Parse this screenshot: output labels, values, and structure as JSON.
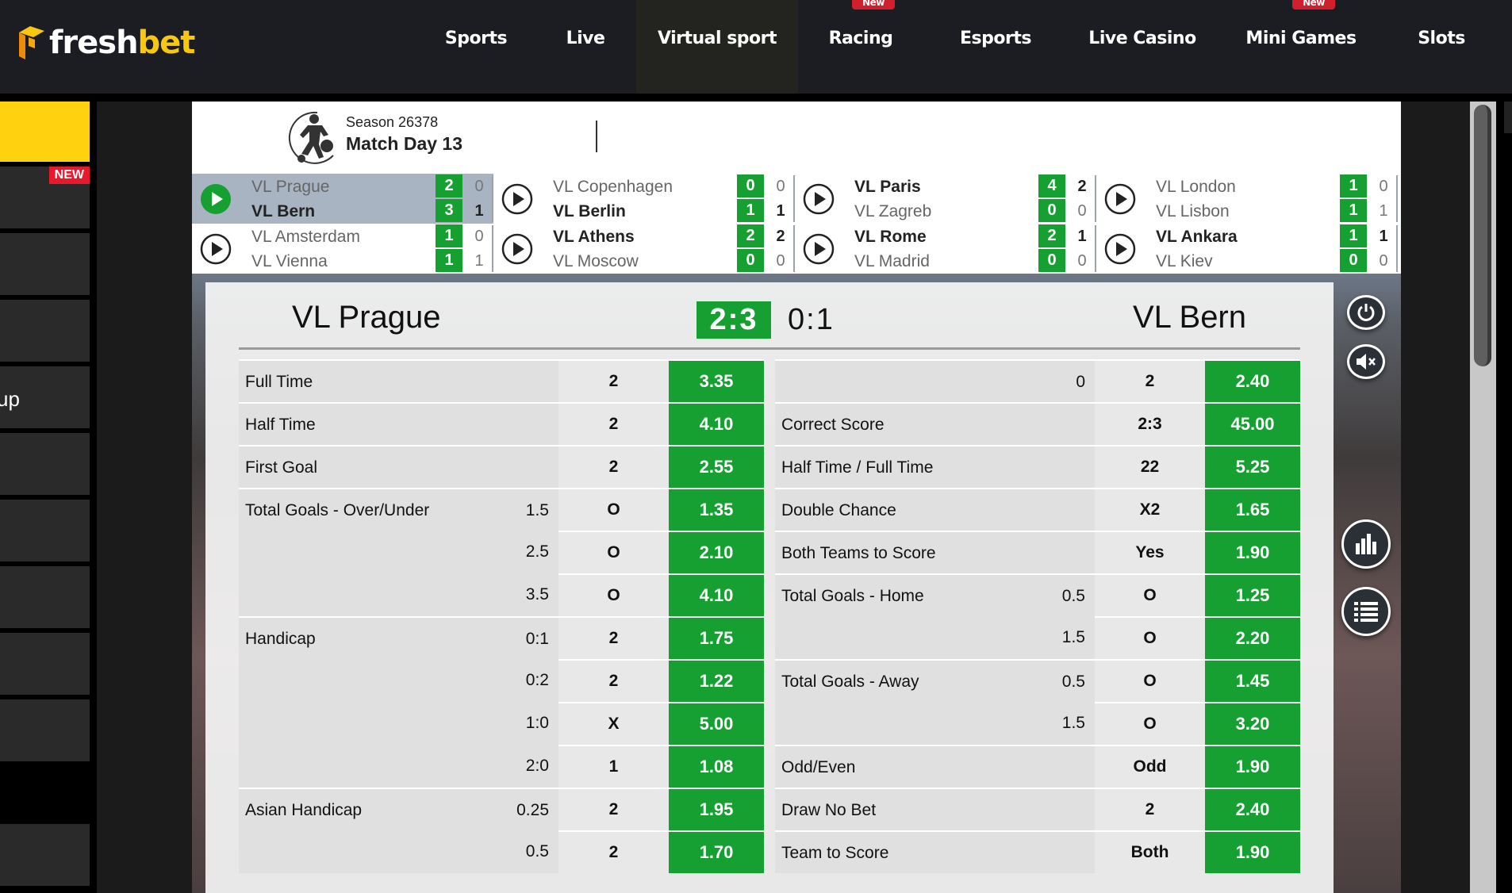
{
  "header": {
    "logo_a": "fresh",
    "logo_b": "bet",
    "nav": [
      {
        "label": "Sports"
      },
      {
        "label": "Live"
      },
      {
        "label": "Virtual sport",
        "active": true
      },
      {
        "label": "Racing",
        "badge": "New"
      },
      {
        "label": "Esports"
      },
      {
        "label": "Live Casino"
      },
      {
        "label": "Mini Games",
        "badge": "New"
      },
      {
        "label": "Slots"
      }
    ]
  },
  "sidebar": {
    "new_badge": "NEW",
    "partial_text": "up"
  },
  "season": {
    "season": "Season 26378",
    "match_day": "Match Day 13"
  },
  "matches": [
    {
      "home": "VL Prague",
      "away": "VL Bern",
      "home_ft": "2",
      "away_ft": "3",
      "home_ht": "0",
      "away_ht": "1",
      "home_bold": false,
      "away_bold": true,
      "active": true
    },
    {
      "home": "VL Copenhagen",
      "away": "VL Berlin",
      "home_ft": "0",
      "away_ft": "1",
      "home_ht": "0",
      "away_ht": "1",
      "home_bold": false,
      "away_bold": true
    },
    {
      "home": "VL Paris",
      "away": "VL Zagreb",
      "home_ft": "4",
      "away_ft": "0",
      "home_ht": "2",
      "away_ht": "0",
      "home_bold": true,
      "away_bold": false
    },
    {
      "home": "VL London",
      "away": "VL Lisbon",
      "home_ft": "1",
      "away_ft": "1",
      "home_ht": "0",
      "away_ht": "1",
      "home_bold": false,
      "away_bold": false
    },
    {
      "home": "VL Amsterdam",
      "away": "VL Vienna",
      "home_ft": "1",
      "away_ft": "1",
      "home_ht": "0",
      "away_ht": "1",
      "home_bold": false,
      "away_bold": false
    },
    {
      "home": "VL Athens",
      "away": "VL Moscow",
      "home_ft": "2",
      "away_ft": "0",
      "home_ht": "2",
      "away_ht": "0",
      "home_bold": true,
      "away_bold": false
    },
    {
      "home": "VL Rome",
      "away": "VL Madrid",
      "home_ft": "2",
      "away_ft": "0",
      "home_ht": "1",
      "away_ht": "0",
      "home_bold": true,
      "away_bold": false
    },
    {
      "home": "VL Ankara",
      "away": "VL Kiev",
      "home_ft": "1",
      "away_ft": "0",
      "home_ht": "1",
      "away_ht": "0",
      "home_bold": true,
      "away_bold": false
    }
  ],
  "detail": {
    "home": "VL Prague",
    "away": "VL Bern",
    "score": "2:3",
    "ht_score": "0:1",
    "left": [
      {
        "label": "Full Time",
        "line": "",
        "pick": "2",
        "odds": "3.35"
      },
      {
        "label": "Half Time",
        "line": "",
        "pick": "2",
        "odds": "4.10"
      },
      {
        "label": "First Goal",
        "line": "",
        "pick": "2",
        "odds": "2.55"
      },
      {
        "label": "Total Goals - Over/Under",
        "line": "1.5",
        "pick": "O",
        "odds": "1.35"
      },
      {
        "label": "",
        "line": "2.5",
        "pick": "O",
        "odds": "2.10",
        "cont": true
      },
      {
        "label": "",
        "line": "3.5",
        "pick": "O",
        "odds": "4.10",
        "cont": true
      },
      {
        "label": "Handicap",
        "line": "0:1",
        "pick": "2",
        "odds": "1.75"
      },
      {
        "label": "",
        "line": "0:2",
        "pick": "2",
        "odds": "1.22",
        "cont": true
      },
      {
        "label": "",
        "line": "1:0",
        "pick": "X",
        "odds": "5.00",
        "cont": true
      },
      {
        "label": "",
        "line": "2:0",
        "pick": "1",
        "odds": "1.08",
        "cont": true
      },
      {
        "label": "Asian Handicap",
        "line": "0.25",
        "pick": "2",
        "odds": "1.95"
      },
      {
        "label": "",
        "line": "0.5",
        "pick": "2",
        "odds": "1.70",
        "cont": true
      }
    ],
    "right": [
      {
        "label": "",
        "line": "0",
        "pick": "2",
        "odds": "2.40"
      },
      {
        "label": "Correct Score",
        "line": "",
        "pick": "2:3",
        "odds": "45.00"
      },
      {
        "label": "Half Time / Full Time",
        "line": "",
        "pick": "22",
        "odds": "5.25"
      },
      {
        "label": "Double Chance",
        "line": "",
        "pick": "X2",
        "odds": "1.65"
      },
      {
        "label": "Both Teams to Score",
        "line": "",
        "pick": "Yes",
        "odds": "1.90"
      },
      {
        "label": "Total Goals - Home",
        "line": "0.5",
        "pick": "O",
        "odds": "1.25"
      },
      {
        "label": "",
        "line": "1.5",
        "pick": "O",
        "odds": "2.20",
        "cont": true
      },
      {
        "label": "Total Goals - Away",
        "line": "0.5",
        "pick": "O",
        "odds": "1.45"
      },
      {
        "label": "",
        "line": "1.5",
        "pick": "O",
        "odds": "3.20",
        "cont": true
      },
      {
        "label": "Odd/Even",
        "line": "",
        "pick": "Odd",
        "odds": "1.90"
      },
      {
        "label": "Draw No Bet",
        "line": "",
        "pick": "2",
        "odds": "2.40"
      },
      {
        "label": "Team to Score",
        "line": "",
        "pick": "Both",
        "odds": "1.90"
      }
    ]
  },
  "colors": {
    "accent_green": "#16a032",
    "brand_yellow": "#ffd10f",
    "header_bg": "#1c1d22",
    "badge_red": "#d0202e"
  },
  "icons": [
    "logo-icon",
    "player-icon",
    "play-icon",
    "power-icon",
    "mute-icon",
    "stats-icon",
    "list-icon"
  ]
}
